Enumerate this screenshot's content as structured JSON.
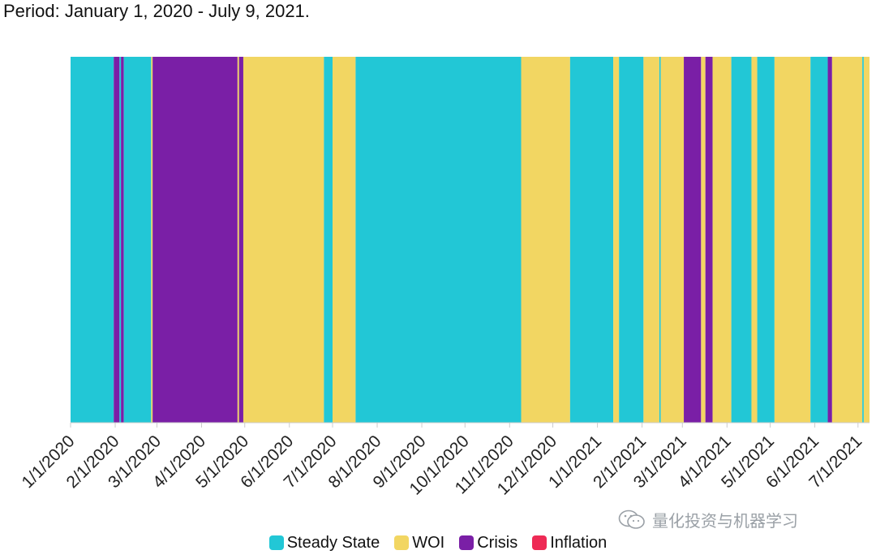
{
  "period_text": "Period: January 1, 2020 - July 9, 2021.",
  "colors": {
    "Steady State": "#22c7d6",
    "WOI": "#f2d662",
    "Crisis": "#7a1fa6",
    "Inflation": "#ee2a55"
  },
  "legend": [
    {
      "label": "Steady State",
      "color": "#22c7d6"
    },
    {
      "label": "WOI",
      "color": "#f2d662"
    },
    {
      "label": "Crisis",
      "color": "#7a1fa6"
    },
    {
      "label": "Inflation",
      "color": "#ee2a55"
    }
  ],
  "watermark": {
    "text": "量化投资与机器学习",
    "icon": "wechat-icon"
  },
  "chart_data": {
    "type": "bar",
    "title": "",
    "xlabel": "",
    "ylabel": "",
    "xlim": [
      "2020-01-01",
      "2021-07-09"
    ],
    "grid": false,
    "legend_position": "bottom",
    "x_ticks": [
      "1/1/2020",
      "2/1/2020",
      "3/1/2020",
      "4/1/2020",
      "5/1/2020",
      "6/1/2020",
      "7/1/2020",
      "8/1/2020",
      "9/1/2020",
      "10/1/2020",
      "11/1/2020",
      "12/1/2020",
      "1/1/2021",
      "2/1/2021",
      "3/1/2021",
      "4/1/2021",
      "5/1/2021",
      "6/1/2021",
      "7/1/2021"
    ],
    "series": [
      {
        "name": "Steady State",
        "color": "#22c7d6"
      },
      {
        "name": "WOI",
        "color": "#f2d662"
      },
      {
        "name": "Crisis",
        "color": "#7a1fa6"
      },
      {
        "name": "Inflation",
        "color": "#ee2a55"
      }
    ],
    "segments": [
      {
        "start": "2020-01-01",
        "end": "2020-01-31",
        "regime": "Steady State"
      },
      {
        "start": "2020-01-31",
        "end": "2020-02-04",
        "regime": "Crisis"
      },
      {
        "start": "2020-02-04",
        "end": "2020-02-05",
        "regime": "Steady State"
      },
      {
        "start": "2020-02-05",
        "end": "2020-02-07",
        "regime": "Crisis"
      },
      {
        "start": "2020-02-07",
        "end": "2020-02-26",
        "regime": "Steady State"
      },
      {
        "start": "2020-02-26",
        "end": "2020-02-27",
        "regime": "WOI"
      },
      {
        "start": "2020-02-27",
        "end": "2020-04-26",
        "regime": "Crisis"
      },
      {
        "start": "2020-04-26",
        "end": "2020-04-27",
        "regime": "WOI"
      },
      {
        "start": "2020-04-27",
        "end": "2020-04-30",
        "regime": "Crisis"
      },
      {
        "start": "2020-04-30",
        "end": "2020-06-25",
        "regime": "WOI"
      },
      {
        "start": "2020-06-25",
        "end": "2020-07-01",
        "regime": "Steady State"
      },
      {
        "start": "2020-07-01",
        "end": "2020-07-17",
        "regime": "WOI"
      },
      {
        "start": "2020-07-17",
        "end": "2020-11-09",
        "regime": "Steady State"
      },
      {
        "start": "2020-11-09",
        "end": "2020-12-13",
        "regime": "WOI"
      },
      {
        "start": "2020-12-13",
        "end": "2021-01-12",
        "regime": "Steady State"
      },
      {
        "start": "2021-01-12",
        "end": "2021-01-16",
        "regime": "WOI"
      },
      {
        "start": "2021-01-16",
        "end": "2021-02-02",
        "regime": "Steady State"
      },
      {
        "start": "2021-02-02",
        "end": "2021-02-13",
        "regime": "WOI"
      },
      {
        "start": "2021-02-13",
        "end": "2021-02-14",
        "regime": "Steady State"
      },
      {
        "start": "2021-02-14",
        "end": "2021-03-02",
        "regime": "WOI"
      },
      {
        "start": "2021-03-02",
        "end": "2021-03-14",
        "regime": "Crisis"
      },
      {
        "start": "2021-03-14",
        "end": "2021-03-17",
        "regime": "WOI"
      },
      {
        "start": "2021-03-17",
        "end": "2021-03-22",
        "regime": "Crisis"
      },
      {
        "start": "2021-03-22",
        "end": "2021-04-04",
        "regime": "WOI"
      },
      {
        "start": "2021-04-04",
        "end": "2021-04-18",
        "regime": "Steady State"
      },
      {
        "start": "2021-04-18",
        "end": "2021-04-22",
        "regime": "WOI"
      },
      {
        "start": "2021-04-22",
        "end": "2021-05-04",
        "regime": "Steady State"
      },
      {
        "start": "2021-05-04",
        "end": "2021-05-29",
        "regime": "WOI"
      },
      {
        "start": "2021-05-29",
        "end": "2021-06-10",
        "regime": "Steady State"
      },
      {
        "start": "2021-06-10",
        "end": "2021-06-13",
        "regime": "Crisis"
      },
      {
        "start": "2021-06-13",
        "end": "2021-07-04",
        "regime": "WOI"
      },
      {
        "start": "2021-07-04",
        "end": "2021-07-05",
        "regime": "Steady State"
      },
      {
        "start": "2021-07-05",
        "end": "2021-07-09",
        "regime": "WOI"
      }
    ]
  }
}
